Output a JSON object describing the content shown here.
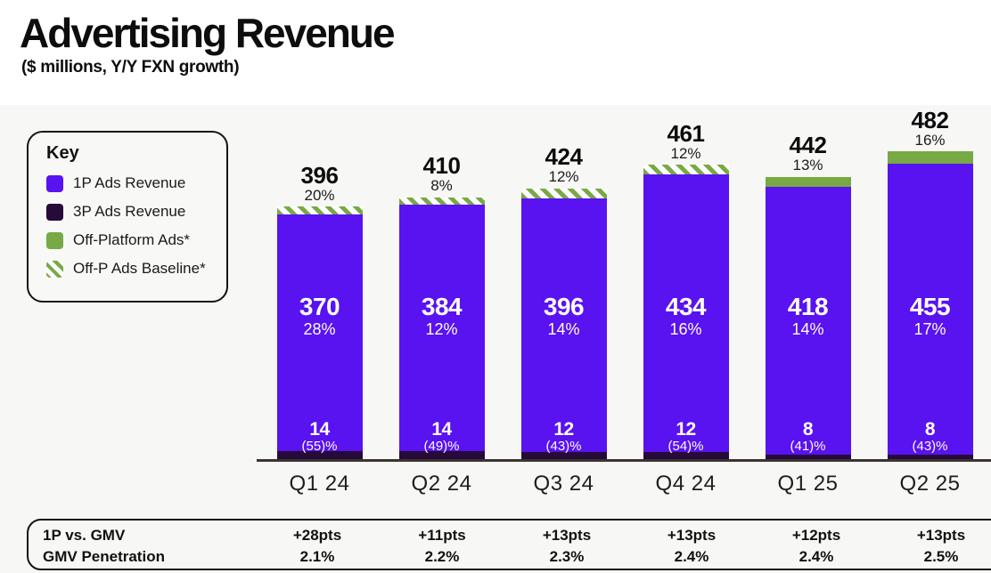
{
  "header": {
    "title": "Advertising Revenue",
    "subtitle": "($ millions, Y/Y FXN growth)"
  },
  "key": {
    "title": "Key",
    "items": [
      {
        "label": "1P Ads Revenue",
        "swatch": "solid-purple"
      },
      {
        "label": "3P Ads Revenue",
        "swatch": "solid-dark-purple"
      },
      {
        "label": "Off-Platform Ads*",
        "swatch": "solid-green"
      },
      {
        "label": "Off-P Ads Baseline*",
        "swatch": "hatched-green"
      }
    ]
  },
  "colors": {
    "p1_purple": "#5912f0",
    "p3_dark": "#250a3a",
    "offplatform_green": "#77a944",
    "background": "#f7f7f5",
    "header_background": "#ffffff",
    "axis": "#3b3530"
  },
  "chart_data": {
    "type": "bar",
    "stacked": true,
    "title": "Advertising Revenue",
    "subtitle": "($ millions, Y/Y FXN growth)",
    "ylabel": "$ millions",
    "ylim": [
      0,
      540
    ],
    "grid": false,
    "legend_position": "left",
    "categories": [
      "Q1 24",
      "Q2 24",
      "Q3 24",
      "Q4 24",
      "Q1 25",
      "Q2 25"
    ],
    "series": [
      {
        "name": "3P Ads Revenue",
        "values": [
          14,
          14,
          12,
          12,
          8,
          8
        ]
      },
      {
        "name": "1P Ads Revenue",
        "values": [
          370,
          384,
          396,
          434,
          418,
          455
        ]
      },
      {
        "name": "Off-Platform Ads / Baseline",
        "values": [
          12,
          12,
          16,
          15,
          16,
          19
        ]
      }
    ],
    "bars": [
      {
        "category": "Q1 24",
        "total": 396,
        "total_growth": "20%",
        "p1": 370,
        "p1_growth": "28%",
        "p3": 14,
        "p3_growth": "(55)%",
        "top_value": 12,
        "top_type": "baseline"
      },
      {
        "category": "Q2 24",
        "total": 410,
        "total_growth": "8%",
        "p1": 384,
        "p1_growth": "12%",
        "p3": 14,
        "p3_growth": "(49)%",
        "top_value": 12,
        "top_type": "baseline"
      },
      {
        "category": "Q3 24",
        "total": 424,
        "total_growth": "12%",
        "p1": 396,
        "p1_growth": "14%",
        "p3": 12,
        "p3_growth": "(43)%",
        "top_value": 16,
        "top_type": "baseline"
      },
      {
        "category": "Q4 24",
        "total": 461,
        "total_growth": "12%",
        "p1": 434,
        "p1_growth": "16%",
        "p3": 12,
        "p3_growth": "(54)%",
        "top_value": 15,
        "top_type": "baseline"
      },
      {
        "category": "Q1 25",
        "total": 442,
        "total_growth": "13%",
        "p1": 418,
        "p1_growth": "14%",
        "p3": 8,
        "p3_growth": "(41)%",
        "top_value": 16,
        "top_type": "offplatform"
      },
      {
        "category": "Q2 25",
        "total": 482,
        "total_growth": "16%",
        "p1": 455,
        "p1_growth": "17%",
        "p3": 8,
        "p3_growth": "(43)%",
        "top_value": 19,
        "top_type": "offplatform"
      }
    ]
  },
  "table": {
    "rows": [
      {
        "label": "1P vs. GMV",
        "values": [
          "+28pts",
          "+11pts",
          "+13pts",
          "+13pts",
          "+12pts",
          "+13pts"
        ]
      },
      {
        "label": "GMV Penetration",
        "values": [
          "2.1%",
          "2.2%",
          "2.3%",
          "2.4%",
          "2.4%",
          "2.5%"
        ]
      }
    ]
  }
}
